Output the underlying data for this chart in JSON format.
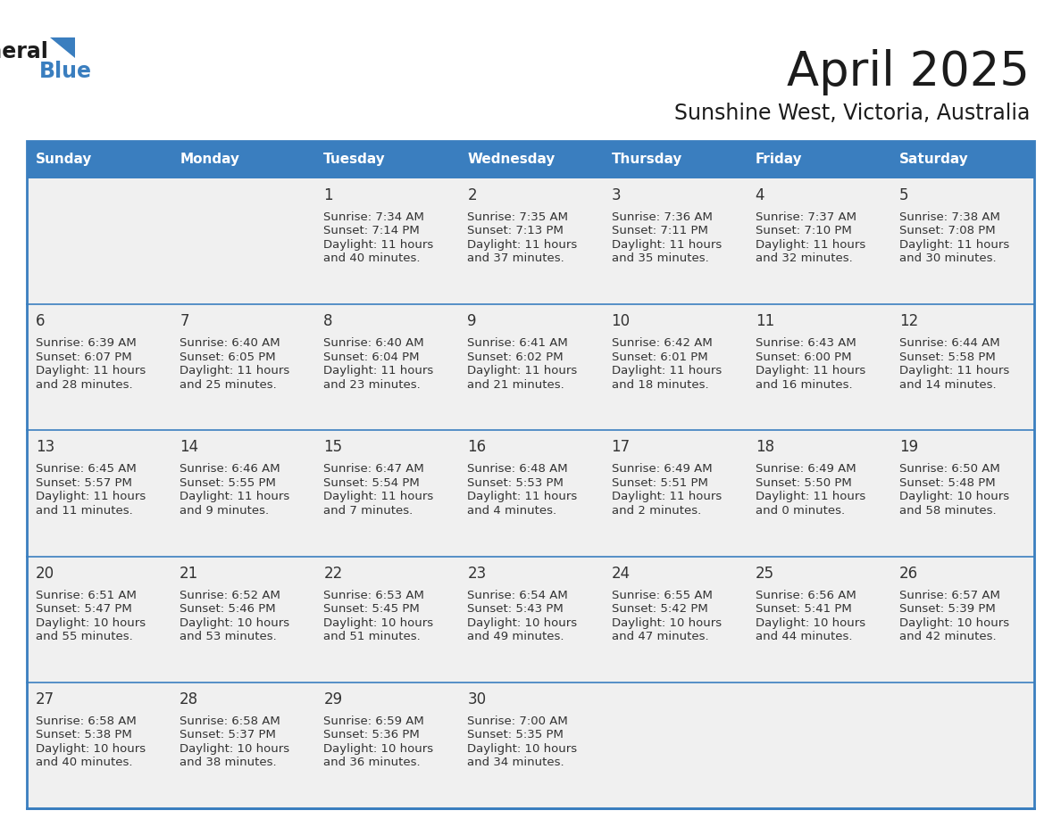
{
  "title": "April 2025",
  "subtitle": "Sunshine West, Victoria, Australia",
  "header_bg": "#3a7ebf",
  "header_text_color": "#ffffff",
  "cell_bg": "#f0f0f0",
  "border_color": "#3a7ebf",
  "text_color": "#333333",
  "days_of_week": [
    "Sunday",
    "Monday",
    "Tuesday",
    "Wednesday",
    "Thursday",
    "Friday",
    "Saturday"
  ],
  "calendar_data": [
    [
      {
        "day": null,
        "sunrise": null,
        "sunset": null,
        "daylight_hours": null,
        "daylight_mins": null
      },
      {
        "day": null,
        "sunrise": null,
        "sunset": null,
        "daylight_hours": null,
        "daylight_mins": null
      },
      {
        "day": "1",
        "sunrise": "7:34 AM",
        "sunset": "7:14 PM",
        "daylight_hours": "11 hours",
        "daylight_mins": "and 40 minutes."
      },
      {
        "day": "2",
        "sunrise": "7:35 AM",
        "sunset": "7:13 PM",
        "daylight_hours": "11 hours",
        "daylight_mins": "and 37 minutes."
      },
      {
        "day": "3",
        "sunrise": "7:36 AM",
        "sunset": "7:11 PM",
        "daylight_hours": "11 hours",
        "daylight_mins": "and 35 minutes."
      },
      {
        "day": "4",
        "sunrise": "7:37 AM",
        "sunset": "7:10 PM",
        "daylight_hours": "11 hours",
        "daylight_mins": "and 32 minutes."
      },
      {
        "day": "5",
        "sunrise": "7:38 AM",
        "sunset": "7:08 PM",
        "daylight_hours": "11 hours",
        "daylight_mins": "and 30 minutes."
      }
    ],
    [
      {
        "day": "6",
        "sunrise": "6:39 AM",
        "sunset": "6:07 PM",
        "daylight_hours": "11 hours",
        "daylight_mins": "and 28 minutes."
      },
      {
        "day": "7",
        "sunrise": "6:40 AM",
        "sunset": "6:05 PM",
        "daylight_hours": "11 hours",
        "daylight_mins": "and 25 minutes."
      },
      {
        "day": "8",
        "sunrise": "6:40 AM",
        "sunset": "6:04 PM",
        "daylight_hours": "11 hours",
        "daylight_mins": "and 23 minutes."
      },
      {
        "day": "9",
        "sunrise": "6:41 AM",
        "sunset": "6:02 PM",
        "daylight_hours": "11 hours",
        "daylight_mins": "and 21 minutes."
      },
      {
        "day": "10",
        "sunrise": "6:42 AM",
        "sunset": "6:01 PM",
        "daylight_hours": "11 hours",
        "daylight_mins": "and 18 minutes."
      },
      {
        "day": "11",
        "sunrise": "6:43 AM",
        "sunset": "6:00 PM",
        "daylight_hours": "11 hours",
        "daylight_mins": "and 16 minutes."
      },
      {
        "day": "12",
        "sunrise": "6:44 AM",
        "sunset": "5:58 PM",
        "daylight_hours": "11 hours",
        "daylight_mins": "and 14 minutes."
      }
    ],
    [
      {
        "day": "13",
        "sunrise": "6:45 AM",
        "sunset": "5:57 PM",
        "daylight_hours": "11 hours",
        "daylight_mins": "and 11 minutes."
      },
      {
        "day": "14",
        "sunrise": "6:46 AM",
        "sunset": "5:55 PM",
        "daylight_hours": "11 hours",
        "daylight_mins": "and 9 minutes."
      },
      {
        "day": "15",
        "sunrise": "6:47 AM",
        "sunset": "5:54 PM",
        "daylight_hours": "11 hours",
        "daylight_mins": "and 7 minutes."
      },
      {
        "day": "16",
        "sunrise": "6:48 AM",
        "sunset": "5:53 PM",
        "daylight_hours": "11 hours",
        "daylight_mins": "and 4 minutes."
      },
      {
        "day": "17",
        "sunrise": "6:49 AM",
        "sunset": "5:51 PM",
        "daylight_hours": "11 hours",
        "daylight_mins": "and 2 minutes."
      },
      {
        "day": "18",
        "sunrise": "6:49 AM",
        "sunset": "5:50 PM",
        "daylight_hours": "11 hours",
        "daylight_mins": "and 0 minutes."
      },
      {
        "day": "19",
        "sunrise": "6:50 AM",
        "sunset": "5:48 PM",
        "daylight_hours": "10 hours",
        "daylight_mins": "and 58 minutes."
      }
    ],
    [
      {
        "day": "20",
        "sunrise": "6:51 AM",
        "sunset": "5:47 PM",
        "daylight_hours": "10 hours",
        "daylight_mins": "and 55 minutes."
      },
      {
        "day": "21",
        "sunrise": "6:52 AM",
        "sunset": "5:46 PM",
        "daylight_hours": "10 hours",
        "daylight_mins": "and 53 minutes."
      },
      {
        "day": "22",
        "sunrise": "6:53 AM",
        "sunset": "5:45 PM",
        "daylight_hours": "10 hours",
        "daylight_mins": "and 51 minutes."
      },
      {
        "day": "23",
        "sunrise": "6:54 AM",
        "sunset": "5:43 PM",
        "daylight_hours": "10 hours",
        "daylight_mins": "and 49 minutes."
      },
      {
        "day": "24",
        "sunrise": "6:55 AM",
        "sunset": "5:42 PM",
        "daylight_hours": "10 hours",
        "daylight_mins": "and 47 minutes."
      },
      {
        "day": "25",
        "sunrise": "6:56 AM",
        "sunset": "5:41 PM",
        "daylight_hours": "10 hours",
        "daylight_mins": "and 44 minutes."
      },
      {
        "day": "26",
        "sunrise": "6:57 AM",
        "sunset": "5:39 PM",
        "daylight_hours": "10 hours",
        "daylight_mins": "and 42 minutes."
      }
    ],
    [
      {
        "day": "27",
        "sunrise": "6:58 AM",
        "sunset": "5:38 PM",
        "daylight_hours": "10 hours",
        "daylight_mins": "and 40 minutes."
      },
      {
        "day": "28",
        "sunrise": "6:58 AM",
        "sunset": "5:37 PM",
        "daylight_hours": "10 hours",
        "daylight_mins": "and 38 minutes."
      },
      {
        "day": "29",
        "sunrise": "6:59 AM",
        "sunset": "5:36 PM",
        "daylight_hours": "10 hours",
        "daylight_mins": "and 36 minutes."
      },
      {
        "day": "30",
        "sunrise": "7:00 AM",
        "sunset": "5:35 PM",
        "daylight_hours": "10 hours",
        "daylight_mins": "and 34 minutes."
      },
      {
        "day": null,
        "sunrise": null,
        "sunset": null,
        "daylight_hours": null,
        "daylight_mins": null
      },
      {
        "day": null,
        "sunrise": null,
        "sunset": null,
        "daylight_hours": null,
        "daylight_mins": null
      },
      {
        "day": null,
        "sunrise": null,
        "sunset": null,
        "daylight_hours": null,
        "daylight_mins": null
      }
    ]
  ]
}
